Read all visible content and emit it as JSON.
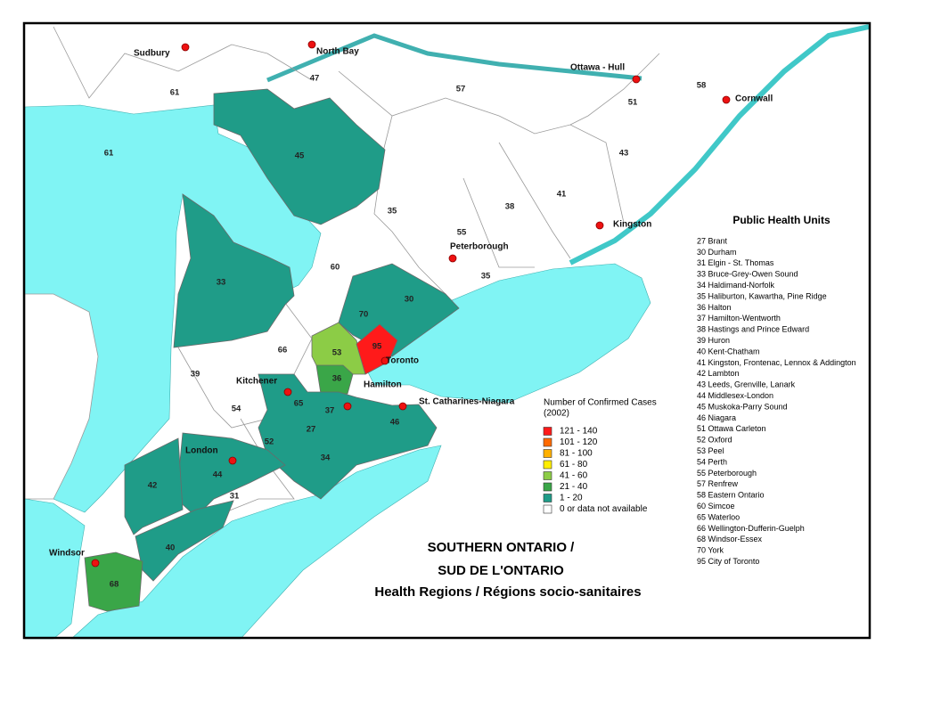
{
  "map": {
    "title": [
      "SOUTHERN ONTARIO /",
      "SUD DE L'ONTARIO",
      "Health Regions / Régions socio-sanitaires"
    ],
    "cities": [
      "Sudbury",
      "North Bay",
      "Ottawa - Hull",
      "Cornwall",
      "Kingston",
      "Peterborough",
      "Toronto",
      "Hamilton",
      "St. Catharines-Niagara",
      "Kitchener",
      "London",
      "Windsor"
    ],
    "regions": [
      "61",
      "61",
      "47",
      "57",
      "58",
      "51",
      "43",
      "41",
      "38",
      "45",
      "35",
      "55",
      "35",
      "60",
      "33",
      "30",
      "70",
      "95",
      "53",
      "66",
      "39",
      "36",
      "65",
      "54",
      "37",
      "46",
      "27",
      "52",
      "34",
      "44",
      "31",
      "42",
      "40",
      "68"
    ],
    "legend": {
      "title": [
        "Number of Confirmed Cases",
        "(2002)"
      ],
      "items": [
        {
          "label": "121 - 140",
          "color": "#ff1a1a"
        },
        {
          "label": "101 - 120",
          "color": "#ff6a00"
        },
        {
          "label": "81 - 100",
          "color": "#ffb000"
        },
        {
          "label": "61 -  80",
          "color": "#ffee00"
        },
        {
          "label": "41 -  60",
          "color": "#8ccc46"
        },
        {
          "label": "21 -  40",
          "color": "#3aa648"
        },
        {
          "label": "1 -  20",
          "color": "#1f9c88"
        },
        {
          "label": "0 or data not available",
          "color": "#ffffff"
        }
      ]
    },
    "units": {
      "title": "Public Health Units",
      "items": [
        "27 Brant",
        "30 Durham",
        "31 Elgin - St. Thomas",
        "33 Bruce-Grey-Owen Sound",
        "34 Haldimand-Norfolk",
        "35 Haliburton, Kawartha, Pine Ridge",
        "36 Halton",
        "37 Hamilton-Wentworth",
        "38 Hastings and Prince Edward",
        "39 Huron",
        "40 Kent-Chatham",
        "41 Kingston, Frontenac, Lennox & Addington",
        "42 Lambton",
        "43 Leeds, Grenville, Lanark",
        "44 Middlesex-London",
        "45 Muskoka-Parry Sound",
        "46 Niagara",
        "51 Ottawa Carleton",
        "52 Oxford",
        "53 Peel",
        "54 Perth",
        "55 Peterborough",
        "57 Renfrew",
        "58 Eastern Ontario",
        "60 Simcoe",
        "65 Waterloo",
        "66 Wellington-Dufferin-Guelph",
        "68 Windsor-Essex",
        "70 York",
        "95 City of Toronto"
      ]
    }
  }
}
